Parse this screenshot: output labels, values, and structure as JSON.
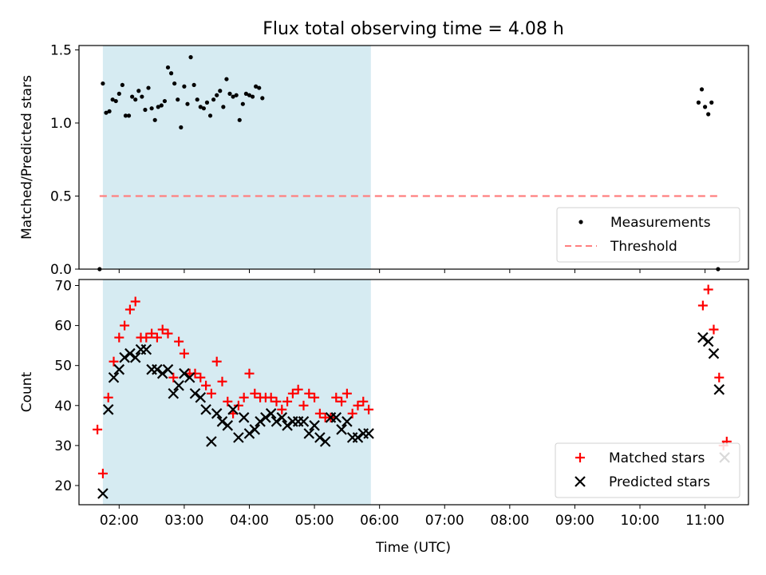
{
  "chart_data": [
    {
      "type": "scatter",
      "title": "Flux total observing time = 4.08 h",
      "xlabel": "",
      "ylabel": "Matched/Predicted stars",
      "ylim": [
        0,
        1.53
      ],
      "yticks": [
        "0.0",
        "0.5",
        "1.0",
        "1.5"
      ],
      "legend_position": "bottom-right",
      "series": [
        {
          "name": "Measurements",
          "marker": "dot",
          "color": "#000000",
          "points": [
            [
              "01:42",
              0.0
            ],
            [
              "01:45",
              1.27
            ],
            [
              "01:48",
              1.07
            ],
            [
              "01:51",
              1.08
            ],
            [
              "01:54",
              1.16
            ],
            [
              "01:57",
              1.15
            ],
            [
              "02:00",
              1.2
            ],
            [
              "02:03",
              1.26
            ],
            [
              "02:06",
              1.05
            ],
            [
              "02:09",
              1.05
            ],
            [
              "02:12",
              1.18
            ],
            [
              "02:15",
              1.16
            ],
            [
              "02:18",
              1.22
            ],
            [
              "02:21",
              1.18
            ],
            [
              "02:24",
              1.09
            ],
            [
              "02:27",
              1.24
            ],
            [
              "02:30",
              1.1
            ],
            [
              "02:33",
              1.02
            ],
            [
              "02:36",
              1.11
            ],
            [
              "02:39",
              1.12
            ],
            [
              "02:42",
              1.15
            ],
            [
              "02:45",
              1.38
            ],
            [
              "02:48",
              1.34
            ],
            [
              "02:51",
              1.27
            ],
            [
              "02:54",
              1.16
            ],
            [
              "02:57",
              0.97
            ],
            [
              "03:00",
              1.25
            ],
            [
              "03:03",
              1.13
            ],
            [
              "03:06",
              1.45
            ],
            [
              "03:09",
              1.26
            ],
            [
              "03:12",
              1.16
            ],
            [
              "03:15",
              1.11
            ],
            [
              "03:18",
              1.1
            ],
            [
              "03:21",
              1.14
            ],
            [
              "03:24",
              1.05
            ],
            [
              "03:27",
              1.16
            ],
            [
              "03:30",
              1.19
            ],
            [
              "03:33",
              1.22
            ],
            [
              "03:36",
              1.11
            ],
            [
              "03:39",
              1.3
            ],
            [
              "03:42",
              1.2
            ],
            [
              "03:45",
              1.18
            ],
            [
              "03:48",
              1.19
            ],
            [
              "03:51",
              1.02
            ],
            [
              "03:54",
              1.13
            ],
            [
              "03:57",
              1.2
            ],
            [
              "04:00",
              1.19
            ],
            [
              "04:03",
              1.18
            ],
            [
              "04:06",
              1.25
            ],
            [
              "04:09",
              1.24
            ],
            [
              "04:12",
              1.17
            ],
            [
              "10:54",
              1.14
            ],
            [
              "10:57",
              1.23
            ],
            [
              "11:00",
              1.11
            ],
            [
              "11:03",
              1.06
            ],
            [
              "11:06",
              1.14
            ],
            [
              "11:12",
              0.0
            ]
          ]
        },
        {
          "name": "Threshold",
          "style": "dashed",
          "color": "#ff7f7f",
          "points": [
            [
              "01:42",
              0.5
            ],
            [
              "11:12",
              0.5
            ]
          ]
        }
      ],
      "shaded_span": {
        "from": "01:45",
        "to": "05:52",
        "color": "#add8e6"
      }
    },
    {
      "type": "scatter",
      "title": "",
      "xlabel": "Time (UTC)",
      "ylabel": "Count",
      "ylim": [
        15.2,
        71.5
      ],
      "yticks": [
        "20",
        "30",
        "40",
        "50",
        "60",
        "70"
      ],
      "legend_position": "bottom-right",
      "x_tick_labels": [
        "02:00",
        "03:00",
        "04:00",
        "05:00",
        "06:00",
        "07:00",
        "08:00",
        "09:00",
        "10:00",
        "11:00"
      ],
      "series": [
        {
          "name": "Matched stars",
          "marker": "plus",
          "color": "#ff0000",
          "points": [
            [
              "01:40",
              34
            ],
            [
              "01:45",
              23
            ],
            [
              "01:50",
              42
            ],
            [
              "01:55",
              51
            ],
            [
              "02:00",
              57
            ],
            [
              "02:05",
              60
            ],
            [
              "02:10",
              64
            ],
            [
              "02:15",
              66
            ],
            [
              "02:20",
              57
            ],
            [
              "02:25",
              57
            ],
            [
              "02:30",
              58
            ],
            [
              "02:35",
              57
            ],
            [
              "02:40",
              59
            ],
            [
              "02:45",
              58
            ],
            [
              "02:50",
              47
            ],
            [
              "02:55",
              56
            ],
            [
              "03:00",
              53
            ],
            [
              "03:05",
              48
            ],
            [
              "03:10",
              48
            ],
            [
              "03:15",
              47
            ],
            [
              "03:20",
              45
            ],
            [
              "03:25",
              43
            ],
            [
              "03:30",
              51
            ],
            [
              "03:35",
              46
            ],
            [
              "03:40",
              41
            ],
            [
              "03:45",
              38
            ],
            [
              "03:50",
              40
            ],
            [
              "03:55",
              42
            ],
            [
              "04:00",
              48
            ],
            [
              "04:05",
              43
            ],
            [
              "04:10",
              42
            ],
            [
              "04:15",
              42
            ],
            [
              "04:20",
              42
            ],
            [
              "04:25",
              41
            ],
            [
              "04:30",
              39
            ],
            [
              "04:35",
              41
            ],
            [
              "04:40",
              43
            ],
            [
              "04:45",
              44
            ],
            [
              "04:50",
              40
            ],
            [
              "04:55",
              43
            ],
            [
              "05:00",
              42
            ],
            [
              "05:05",
              38
            ],
            [
              "05:10",
              37
            ],
            [
              "05:15",
              37
            ],
            [
              "05:20",
              42
            ],
            [
              "05:25",
              41
            ],
            [
              "05:30",
              43
            ],
            [
              "05:35",
              38
            ],
            [
              "05:40",
              40
            ],
            [
              "05:45",
              41
            ],
            [
              "05:50",
              39
            ],
            [
              "10:58",
              65
            ],
            [
              "11:03",
              69
            ],
            [
              "11:08",
              59
            ],
            [
              "11:13",
              47
            ],
            [
              "11:17",
              30
            ],
            [
              "11:20",
              31
            ]
          ]
        },
        {
          "name": "Predicted stars",
          "marker": "x",
          "color": "#000000",
          "points": [
            [
              "01:45",
              18
            ],
            [
              "01:50",
              39
            ],
            [
              "01:55",
              47
            ],
            [
              "02:00",
              49
            ],
            [
              "02:05",
              52
            ],
            [
              "02:10",
              53
            ],
            [
              "02:15",
              52
            ],
            [
              "02:20",
              54
            ],
            [
              "02:25",
              54
            ],
            [
              "02:30",
              49
            ],
            [
              "02:35",
              49
            ],
            [
              "02:40",
              48
            ],
            [
              "02:45",
              49
            ],
            [
              "02:50",
              43
            ],
            [
              "02:55",
              45
            ],
            [
              "03:00",
              48
            ],
            [
              "03:05",
              47
            ],
            [
              "03:10",
              43
            ],
            [
              "03:15",
              42
            ],
            [
              "03:20",
              39
            ],
            [
              "03:25",
              31
            ],
            [
              "03:30",
              38
            ],
            [
              "03:35",
              36
            ],
            [
              "03:40",
              35
            ],
            [
              "03:45",
              39
            ],
            [
              "03:50",
              32
            ],
            [
              "03:55",
              37
            ],
            [
              "04:00",
              33
            ],
            [
              "04:05",
              34
            ],
            [
              "04:10",
              36
            ],
            [
              "04:15",
              37
            ],
            [
              "04:20",
              38
            ],
            [
              "04:25",
              36
            ],
            [
              "04:30",
              37
            ],
            [
              "04:35",
              35
            ],
            [
              "04:40",
              36
            ],
            [
              "04:45",
              36
            ],
            [
              "04:50",
              36
            ],
            [
              "04:55",
              33
            ],
            [
              "05:00",
              35
            ],
            [
              "05:05",
              32
            ],
            [
              "05:10",
              31
            ],
            [
              "05:15",
              37
            ],
            [
              "05:20",
              37
            ],
            [
              "05:25",
              34
            ],
            [
              "05:30",
              36
            ],
            [
              "05:35",
              32
            ],
            [
              "05:40",
              32
            ],
            [
              "05:45",
              33
            ],
            [
              "05:50",
              33
            ],
            [
              "10:58",
              57
            ],
            [
              "11:03",
              56
            ],
            [
              "11:08",
              53
            ],
            [
              "11:13",
              44
            ],
            [
              "11:18",
              27
            ]
          ]
        }
      ],
      "shaded_span": {
        "from": "01:45",
        "to": "05:52",
        "color": "#add8e6"
      }
    }
  ]
}
